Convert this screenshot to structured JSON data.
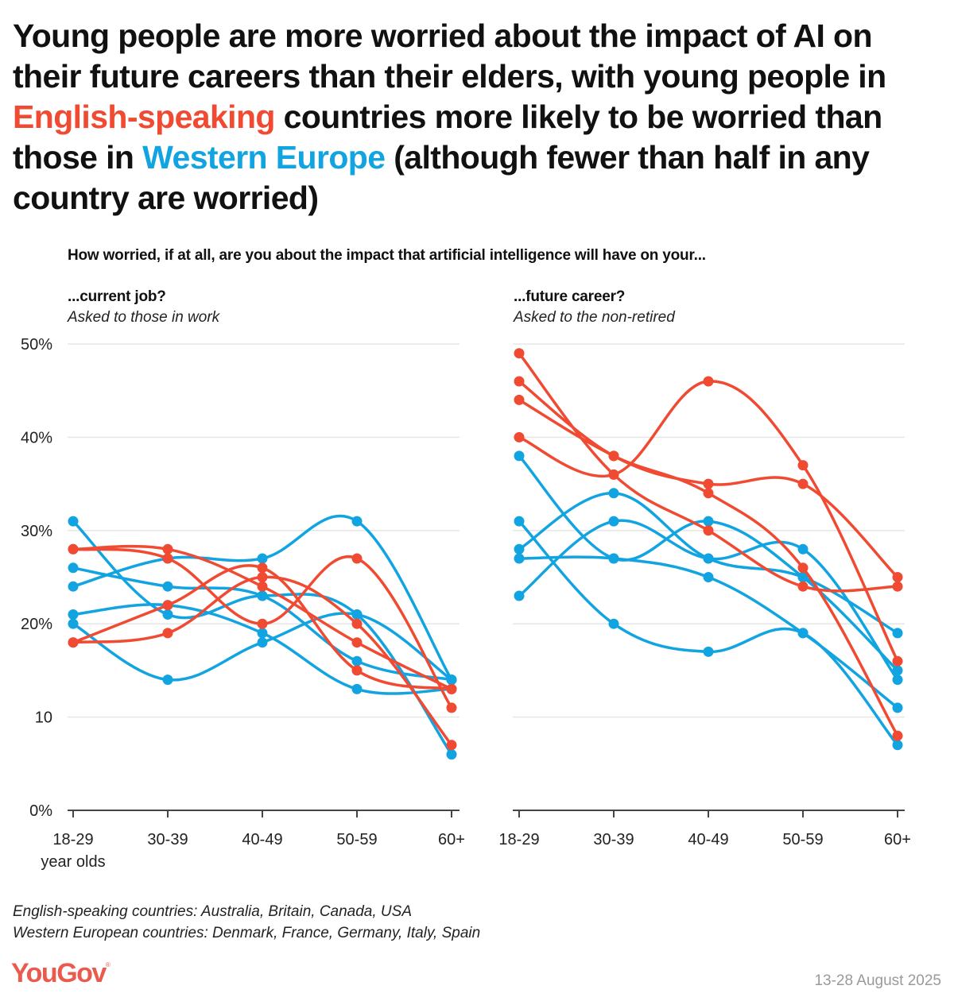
{
  "title": {
    "part1": "Young people are more worried about the impact of AI on their future careers than their elders, with young people in ",
    "highlight_english": "English-speaking",
    "part2": " countries more likely to be worried than those in ",
    "highlight_western": "Western Europe",
    "part3": " (although fewer than half in any country are worried)"
  },
  "question": "How worried, if at all, are you about the impact that artificial intelligence will have on your...",
  "panels": [
    {
      "title": "...current job?",
      "subtitle": "Asked to those in work"
    },
    {
      "title": "...future career?",
      "subtitle": "Asked to the non-retired"
    }
  ],
  "notes": [
    "English-speaking countries: Australia, Britain, Canada, USA",
    "Western European countries: Denmark, France, Germany, Italy, Spain"
  ],
  "brand": "YouGov",
  "date": "13-28 August 2025",
  "colors": {
    "english_speaking": "#f04a32",
    "western_europe": "#12a4e0",
    "grid": "#e6e6e6",
    "axis": "#444444",
    "brand": "#ea5a4f"
  },
  "chart_data": [
    {
      "type": "line",
      "title": "...current job?",
      "subtitle": "Asked to those in work",
      "categories": [
        "18-29",
        "30-39",
        "40-49",
        "50-59",
        "60+"
      ],
      "xlabel_extra": "year olds",
      "ylabel": "",
      "ylim": [
        0,
        50
      ],
      "yticks": [
        0,
        10,
        20,
        30,
        40,
        50
      ],
      "ytick_labels": [
        "0%",
        "10",
        "20%",
        "30%",
        "40%",
        "50%"
      ],
      "grid": true,
      "series": [
        {
          "group": "English-speaking",
          "values": [
            28,
            28,
            24,
            18,
            13
          ]
        },
        {
          "group": "English-speaking",
          "values": [
            28,
            27,
            20,
            27,
            11
          ]
        },
        {
          "group": "English-speaking",
          "values": [
            18,
            22,
            26,
            15,
            13
          ]
        },
        {
          "group": "English-speaking",
          "values": [
            18,
            19,
            25,
            20,
            7
          ]
        },
        {
          "group": "Western Europe",
          "values": [
            31,
            21,
            23,
            21,
            6
          ]
        },
        {
          "group": "Western Europe",
          "values": [
            24,
            27,
            27,
            31,
            14
          ]
        },
        {
          "group": "Western Europe",
          "values": [
            26,
            24,
            23,
            16,
            14
          ]
        },
        {
          "group": "Western Europe",
          "values": [
            21,
            22,
            19,
            13,
            13
          ]
        },
        {
          "group": "Western Europe",
          "values": [
            20,
            14,
            18,
            21,
            14
          ]
        }
      ]
    },
    {
      "type": "line",
      "title": "...future career?",
      "subtitle": "Asked to the non-retired",
      "categories": [
        "18-29",
        "30-39",
        "40-49",
        "50-59",
        "60+"
      ],
      "ylabel": "",
      "ylim": [
        0,
        50
      ],
      "yticks": [
        0,
        10,
        20,
        30,
        40,
        50
      ],
      "grid": true,
      "series": [
        {
          "group": "English-speaking",
          "values": [
            49,
            36,
            30,
            24,
            24
          ]
        },
        {
          "group": "English-speaking",
          "values": [
            46,
            38,
            35,
            35,
            25
          ]
        },
        {
          "group": "English-speaking",
          "values": [
            44,
            38,
            34,
            26,
            8
          ]
        },
        {
          "group": "English-speaking",
          "values": [
            40,
            36,
            46,
            37,
            16
          ]
        },
        {
          "group": "Western Europe",
          "values": [
            38,
            27,
            31,
            25,
            15
          ]
        },
        {
          "group": "Western Europe",
          "values": [
            31,
            20,
            17,
            19,
            7
          ]
        },
        {
          "group": "Western Europe",
          "values": [
            28,
            34,
            27,
            25,
            19
          ]
        },
        {
          "group": "Western Europe",
          "values": [
            27,
            27,
            25,
            19,
            11
          ]
        },
        {
          "group": "Western Europe",
          "values": [
            23,
            31,
            27,
            28,
            14
          ]
        }
      ]
    }
  ]
}
